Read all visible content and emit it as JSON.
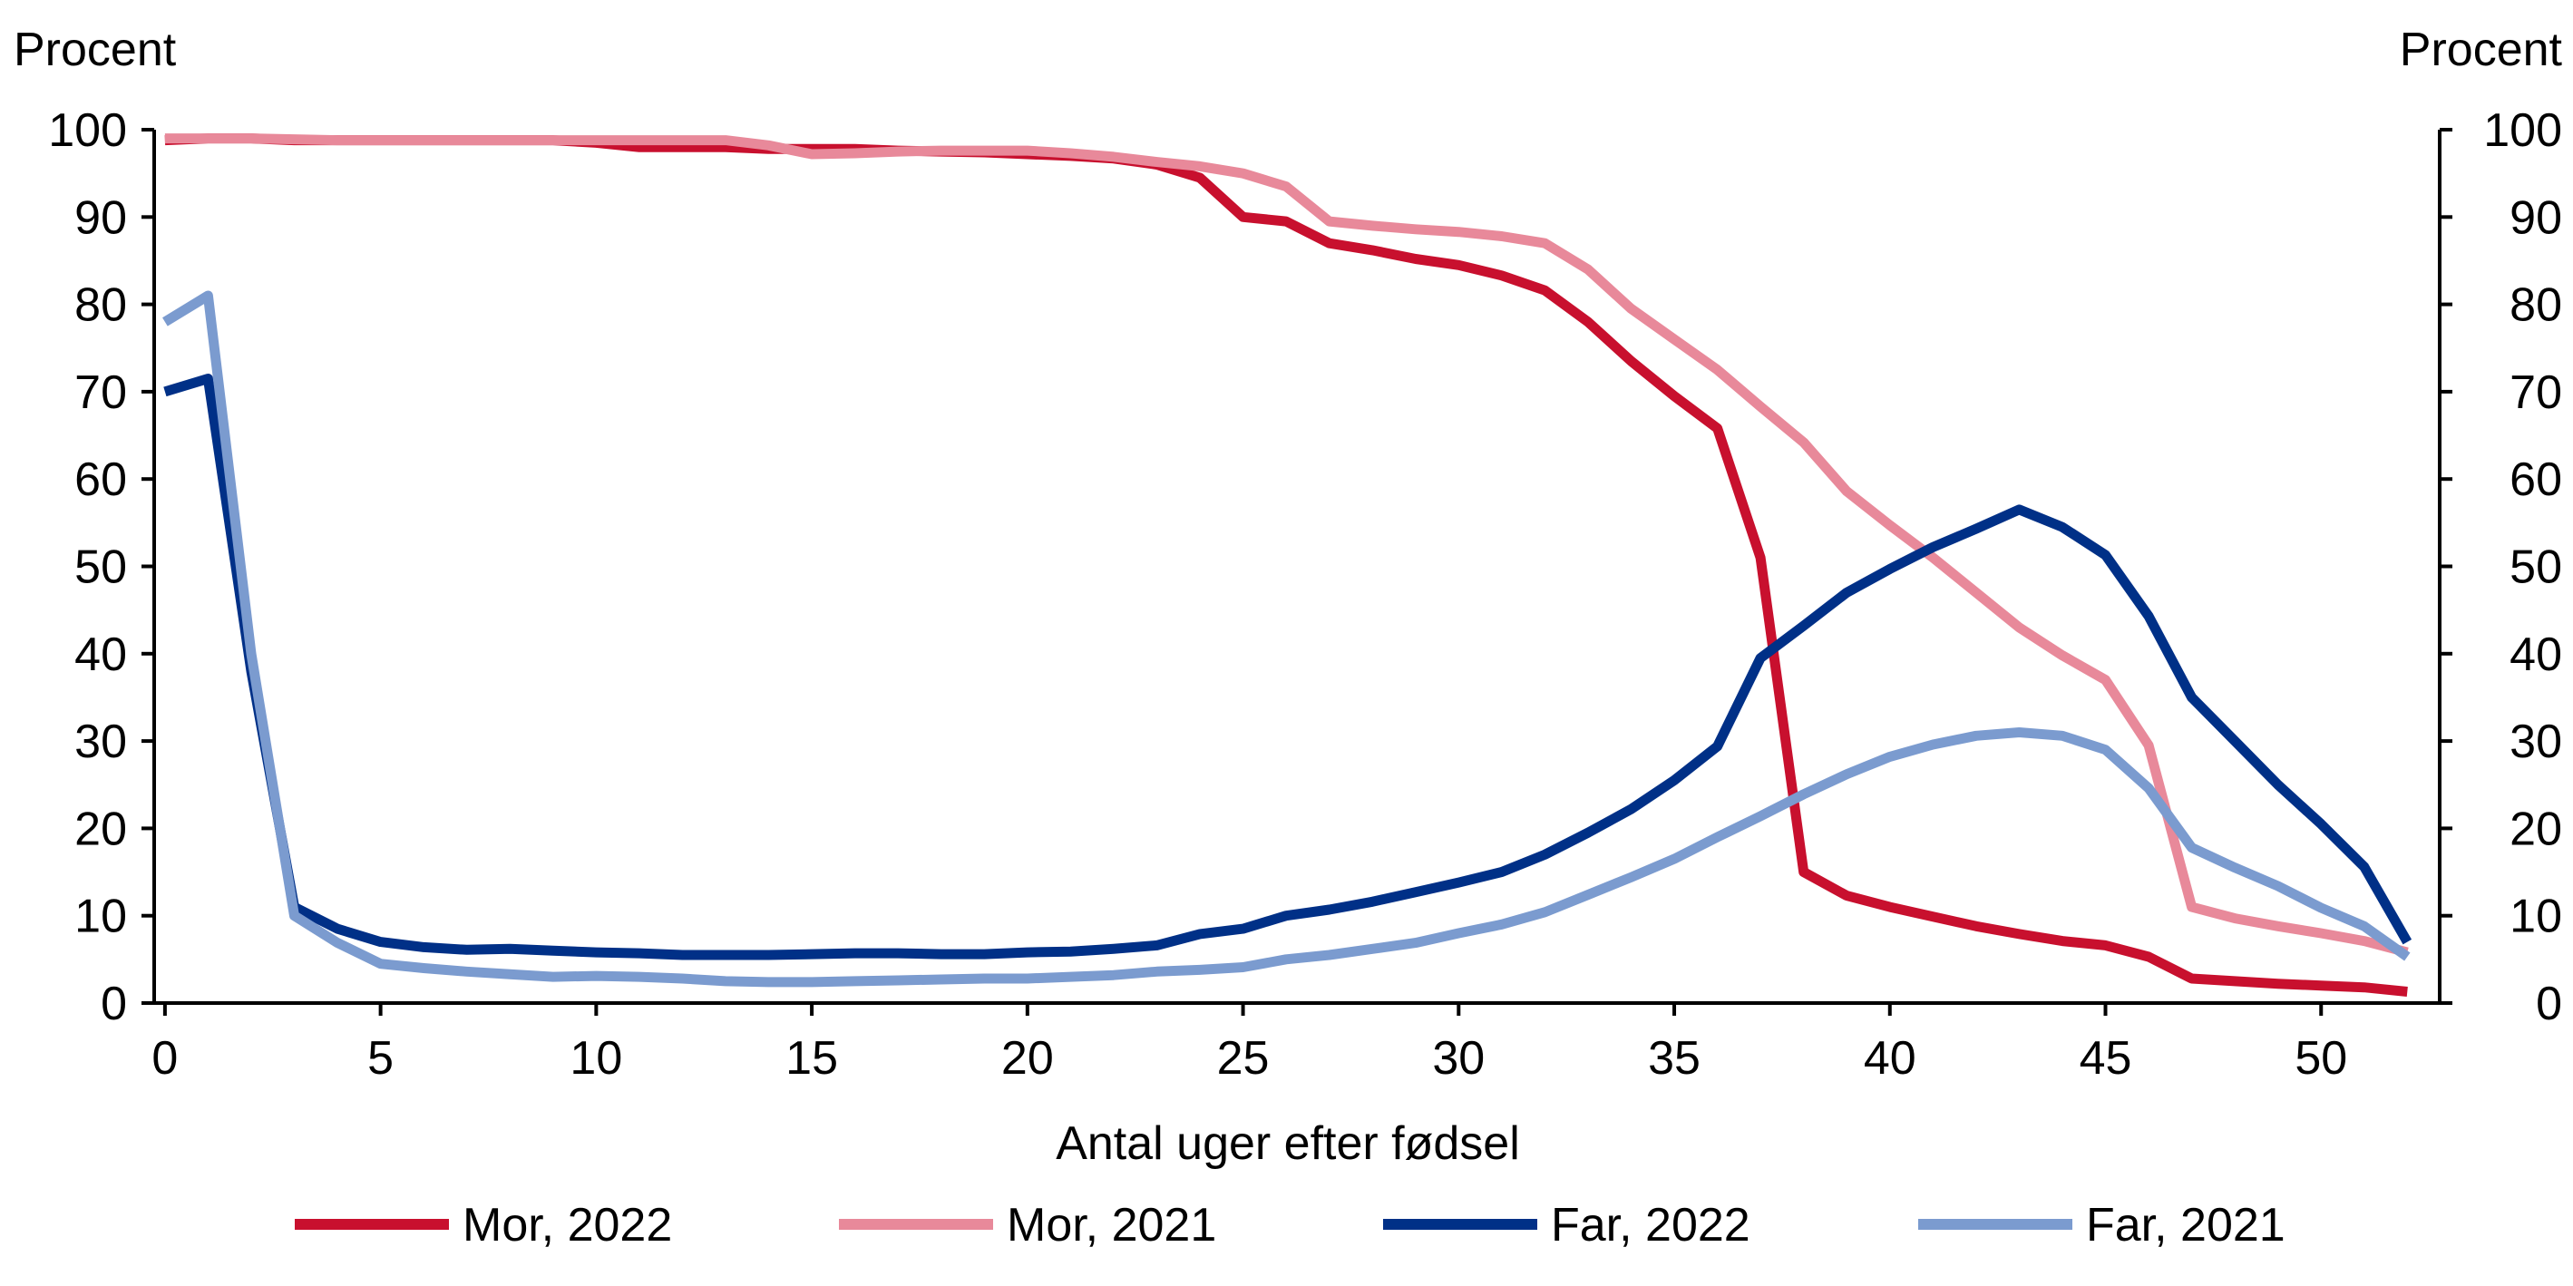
{
  "chart_data": {
    "type": "line",
    "title": "",
    "xlabel": "Antal uger efter fødsel",
    "ylabel_left": "Procent",
    "ylabel_right": "Procent",
    "xlim": [
      0,
      53
    ],
    "ylim": [
      0,
      100
    ],
    "x_ticks": [
      0,
      5,
      10,
      15,
      20,
      25,
      30,
      35,
      40,
      45,
      50
    ],
    "y_ticks": [
      0,
      10,
      20,
      30,
      40,
      50,
      60,
      70,
      80,
      90,
      100
    ],
    "grid": false,
    "legend_position": "bottom",
    "x": [
      0,
      1,
      2,
      3,
      4,
      5,
      6,
      7,
      8,
      9,
      10,
      11,
      12,
      13,
      14,
      15,
      16,
      17,
      18,
      19,
      20,
      21,
      22,
      23,
      24,
      25,
      26,
      27,
      28,
      29,
      30,
      31,
      32,
      33,
      34,
      35,
      36,
      37,
      38,
      39,
      40,
      41,
      42,
      43,
      44,
      45,
      46,
      47,
      48,
      49,
      50,
      51,
      52
    ],
    "series": [
      {
        "name": "Mor, 2022",
        "color": "#c8102e",
        "values": [
          98.8,
          99,
          99,
          98.8,
          98.8,
          98.8,
          98.8,
          98.8,
          98.8,
          98.8,
          98.5,
          98,
          98,
          98,
          97.8,
          97.8,
          97.8,
          97.6,
          97.5,
          97.4,
          97.2,
          97,
          96.7,
          96,
          94.5,
          90,
          89.5,
          87,
          86.2,
          85.2,
          84.5,
          83.3,
          81.6,
          78,
          73.5,
          69.5,
          65.8,
          51,
          15,
          12.3,
          11,
          9.9,
          8.8,
          7.9,
          7.1,
          6.6,
          5.3,
          2.8,
          2.5,
          2.2,
          2,
          1.8,
          1.3
        ]
      },
      {
        "name": "Mor, 2021",
        "color": "#e8899a",
        "values": [
          99,
          99,
          99,
          98.9,
          98.8,
          98.8,
          98.8,
          98.8,
          98.8,
          98.8,
          98.8,
          98.8,
          98.8,
          98.8,
          98.2,
          97.2,
          97.3,
          97.5,
          97.6,
          97.6,
          97.6,
          97.3,
          96.9,
          96.3,
          95.8,
          95,
          93.5,
          89.5,
          89,
          88.6,
          88.3,
          87.8,
          87,
          84,
          79.5,
          76,
          72.5,
          68.3,
          64.2,
          58.6,
          54.7,
          51,
          47,
          43,
          39.8,
          37,
          29.5,
          11,
          9.7,
          8.8,
          8,
          7.1,
          5.8
        ]
      },
      {
        "name": "Far, 2022",
        "color": "#003087",
        "values": [
          70,
          71.5,
          38,
          11,
          8.5,
          7,
          6.4,
          6.1,
          6.2,
          6,
          5.8,
          5.7,
          5.5,
          5.5,
          5.5,
          5.6,
          5.7,
          5.7,
          5.6,
          5.6,
          5.8,
          5.9,
          6.2,
          6.6,
          7.9,
          8.5,
          10,
          10.7,
          11.6,
          12.7,
          13.8,
          15,
          17,
          19.5,
          22.2,
          25.5,
          29.4,
          39.5,
          43.2,
          47,
          49.7,
          52.2,
          54.3,
          56.5,
          54.5,
          51.3,
          44.3,
          35,
          30,
          25,
          20.5,
          15.6,
          7
        ]
      },
      {
        "name": "Far, 2021",
        "color": "#7b9bcf",
        "values": [
          78,
          81,
          40,
          10,
          6.9,
          4.5,
          4,
          3.6,
          3.3,
          3,
          3.1,
          3,
          2.8,
          2.5,
          2.4,
          2.4,
          2.5,
          2.6,
          2.7,
          2.8,
          2.8,
          3,
          3.2,
          3.6,
          3.8,
          4.1,
          5,
          5.5,
          6.2,
          6.9,
          8,
          9,
          10.4,
          12.4,
          14.4,
          16.5,
          19,
          21.4,
          23.9,
          26.2,
          28.2,
          29.6,
          30.6,
          31,
          30.6,
          29,
          24.6,
          17.8,
          15.5,
          13.4,
          10.9,
          8.8,
          5.3
        ]
      }
    ]
  }
}
